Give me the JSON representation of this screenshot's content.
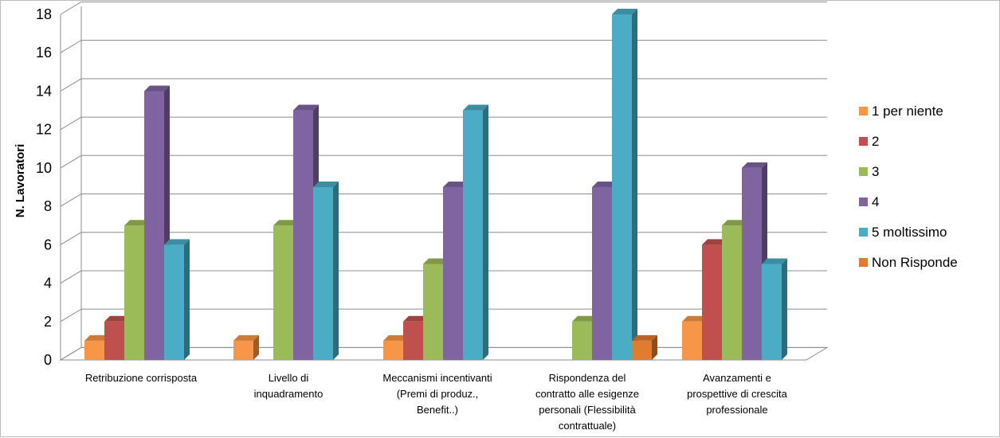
{
  "chart_data": {
    "type": "bar",
    "title": "",
    "xlabel": "",
    "ylabel": "N. Lavoratori",
    "ylim": [
      0,
      18
    ],
    "yticks": [
      0,
      2,
      4,
      6,
      8,
      10,
      12,
      14,
      16,
      18
    ],
    "grid": true,
    "legend_position": "right",
    "categories": [
      [
        "Retribuzione corrisposta"
      ],
      [
        "Livello di",
        "inquadramento"
      ],
      [
        "Meccanismi incentivanti",
        "(Premi di produz.,",
        "Benefit..)"
      ],
      [
        "Rispondenza del",
        "contratto alle esigenze",
        "personali (Flessibilità",
        "contrattuale)"
      ],
      [
        "Avanzamenti e",
        "prospettive di crescita",
        "professionale"
      ]
    ],
    "series": [
      {
        "name": "1 per niente",
        "color": "#f79646",
        "values": [
          1,
          1,
          1,
          0,
          2
        ]
      },
      {
        "name": "2",
        "color": "#c0504d",
        "values": [
          2,
          0,
          2,
          0,
          6
        ]
      },
      {
        "name": "3",
        "color": "#9bbb59",
        "values": [
          7,
          7,
          5,
          2,
          7
        ]
      },
      {
        "name": "4",
        "color": "#8064a2",
        "values": [
          14,
          13,
          9,
          9,
          10
        ]
      },
      {
        "name": "5 moltissimo",
        "color": "#4bacc6",
        "values": [
          6,
          9,
          13,
          18,
          5
        ]
      },
      {
        "name": "Non Risponde",
        "color": "#e07b31",
        "values": [
          0,
          0,
          0,
          1,
          0
        ]
      }
    ]
  }
}
